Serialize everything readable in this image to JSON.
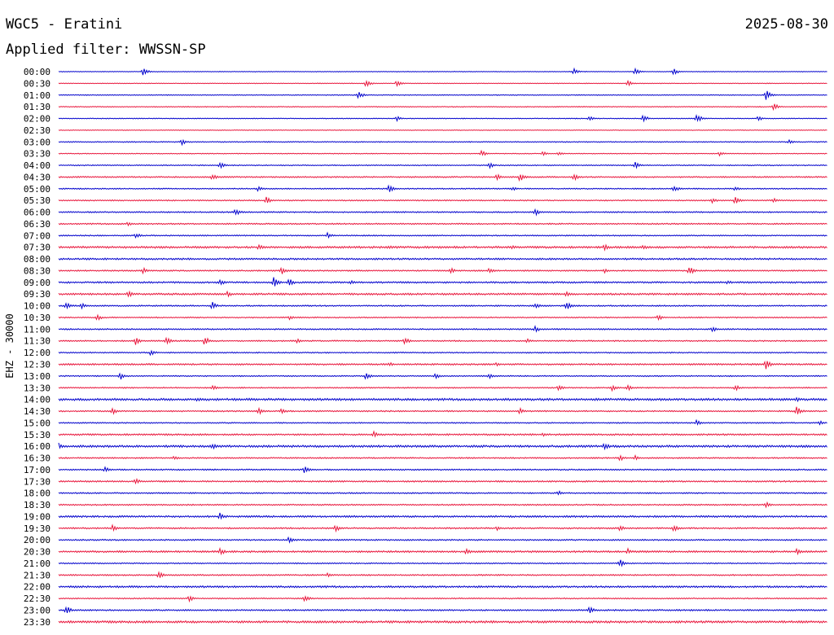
{
  "header": {
    "station": "WGC5 - Eratini",
    "date": "2025-08-30",
    "filter": "Applied filter: WWSSN-SP"
  },
  "chart_data": {
    "type": "line",
    "ylabel": "EHZ - 30000",
    "colors": [
      "#0000cc",
      "#e8153b"
    ],
    "rows": [
      "00:00",
      "00:30",
      "01:00",
      "01:30",
      "02:00",
      "02:30",
      "03:00",
      "03:30",
      "04:00",
      "04:30",
      "05:00",
      "05:30",
      "06:00",
      "06:30",
      "07:00",
      "07:30",
      "08:00",
      "08:30",
      "09:00",
      "09:30",
      "10:00",
      "10:30",
      "11:00",
      "11:30",
      "12:00",
      "12:30",
      "13:00",
      "13:30",
      "14:00",
      "14:30",
      "15:00",
      "15:30",
      "16:00",
      "16:30",
      "17:00",
      "17:30",
      "18:00",
      "18:30",
      "19:00",
      "19:30",
      "20:00",
      "20:30",
      "21:00",
      "21:30",
      "22:00",
      "22:30",
      "23:00",
      "23:30"
    ],
    "noise": [
      0.4,
      0.4,
      0.5,
      0.5,
      0.5,
      0.4,
      0.6,
      0.5,
      0.6,
      0.8,
      0.7,
      0.7,
      0.8,
      0.8,
      0.7,
      1.2,
      1.0,
      0.8,
      1.0,
      1.1,
      0.8,
      0.7,
      0.8,
      0.8,
      0.7,
      1.0,
      0.7,
      0.7,
      1.3,
      0.8,
      0.7,
      1.0,
      1.3,
      0.8,
      0.8,
      0.9,
      0.8,
      0.8,
      1.1,
      0.9,
      0.8,
      1.1,
      0.7,
      0.8,
      1.1,
      0.7,
      0.9,
      1.3
    ],
    "events": [
      [
        [
          0.11,
          5
        ],
        [
          0.67,
          4
        ],
        [
          0.75,
          5
        ],
        [
          0.8,
          4
        ]
      ],
      [
        [
          0.4,
          5
        ],
        [
          0.44,
          4
        ],
        [
          0.74,
          4
        ]
      ],
      [
        [
          0.39,
          5
        ],
        [
          0.92,
          7
        ]
      ],
      [
        [
          0.93,
          5
        ]
      ],
      [
        [
          0.44,
          3
        ],
        [
          0.69,
          3
        ],
        [
          0.76,
          5
        ],
        [
          0.83,
          6
        ],
        [
          0.91,
          3
        ]
      ],
      [],
      [
        [
          0.16,
          4
        ],
        [
          0.95,
          3
        ]
      ],
      [
        [
          0.55,
          4
        ],
        [
          0.63,
          3
        ],
        [
          0.65,
          3
        ],
        [
          0.86,
          3
        ]
      ],
      [
        [
          0.21,
          5
        ],
        [
          0.56,
          4
        ],
        [
          0.75,
          4
        ]
      ],
      [
        [
          0.2,
          4
        ],
        [
          0.57,
          4
        ],
        [
          0.6,
          6
        ],
        [
          0.67,
          5
        ]
      ],
      [
        [
          0.26,
          4
        ],
        [
          0.43,
          6
        ],
        [
          0.59,
          3
        ],
        [
          0.8,
          5
        ],
        [
          0.88,
          3
        ]
      ],
      [
        [
          0.27,
          5
        ],
        [
          0.85,
          4
        ],
        [
          0.88,
          5
        ],
        [
          0.93,
          3
        ]
      ],
      [
        [
          0.23,
          5
        ],
        [
          0.62,
          5
        ]
      ],
      [
        [
          0.09,
          3
        ]
      ],
      [
        [
          0.1,
          4
        ],
        [
          0.35,
          4
        ]
      ],
      [
        [
          0.26,
          4
        ],
        [
          0.43,
          3
        ],
        [
          0.59,
          3
        ],
        [
          0.71,
          4
        ],
        [
          0.76,
          4
        ]
      ],
      [],
      [
        [
          0.11,
          4
        ],
        [
          0.29,
          5
        ],
        [
          0.51,
          4
        ],
        [
          0.56,
          4
        ],
        [
          0.71,
          3
        ],
        [
          0.82,
          6
        ]
      ],
      [
        [
          0.21,
          4
        ],
        [
          0.28,
          7
        ],
        [
          0.3,
          5
        ],
        [
          0.38,
          3
        ],
        [
          0.87,
          3
        ]
      ],
      [
        [
          0.09,
          5
        ],
        [
          0.22,
          4
        ],
        [
          0.66,
          4
        ]
      ],
      [
        [
          0.01,
          5
        ],
        [
          0.03,
          4
        ],
        [
          0.2,
          5
        ],
        [
          0.62,
          4
        ],
        [
          0.66,
          6
        ]
      ],
      [
        [
          0.05,
          4
        ],
        [
          0.3,
          3
        ],
        [
          0.78,
          4
        ]
      ],
      [
        [
          0.62,
          4
        ],
        [
          0.85,
          4
        ]
      ],
      [
        [
          0.1,
          5
        ],
        [
          0.14,
          5
        ],
        [
          0.19,
          6
        ],
        [
          0.31,
          3
        ],
        [
          0.45,
          5
        ],
        [
          0.61,
          3
        ]
      ],
      [
        [
          0.12,
          4
        ]
      ],
      [
        [
          0.43,
          3
        ],
        [
          0.57,
          3
        ],
        [
          0.92,
          8
        ]
      ],
      [
        [
          0.08,
          5
        ],
        [
          0.4,
          5
        ],
        [
          0.49,
          4
        ],
        [
          0.56,
          4
        ]
      ],
      [
        [
          0.2,
          4
        ],
        [
          0.65,
          4
        ],
        [
          0.72,
          4
        ],
        [
          0.74,
          4
        ],
        [
          0.88,
          4
        ]
      ],
      [
        [
          0.18,
          3
        ],
        [
          0.96,
          3
        ]
      ],
      [
        [
          0.07,
          5
        ],
        [
          0.26,
          5
        ],
        [
          0.29,
          4
        ],
        [
          0.6,
          4
        ],
        [
          0.96,
          6
        ]
      ],
      [
        [
          0.83,
          4
        ],
        [
          0.99,
          3
        ]
      ],
      [
        [
          0.41,
          4
        ],
        [
          0.63,
          3
        ]
      ],
      [
        [
          0.0,
          5
        ],
        [
          0.2,
          4
        ],
        [
          0.71,
          5
        ]
      ],
      [
        [
          0.15,
          3
        ],
        [
          0.73,
          4
        ],
        [
          0.75,
          3
        ]
      ],
      [
        [
          0.06,
          4
        ],
        [
          0.32,
          5
        ]
      ],
      [
        [
          0.1,
          4
        ]
      ],
      [
        [
          0.65,
          3
        ]
      ],
      [
        [
          0.92,
          4
        ]
      ],
      [
        [
          0.21,
          5
        ]
      ],
      [
        [
          0.07,
          4
        ],
        [
          0.36,
          5
        ],
        [
          0.57,
          3
        ],
        [
          0.73,
          4
        ],
        [
          0.8,
          5
        ]
      ],
      [
        [
          0.3,
          5
        ]
      ],
      [
        [
          0.21,
          5
        ],
        [
          0.53,
          5
        ],
        [
          0.74,
          4
        ],
        [
          0.96,
          4
        ]
      ],
      [
        [
          0.73,
          5
        ]
      ],
      [
        [
          0.13,
          5
        ],
        [
          0.35,
          3
        ]
      ],
      [],
      [
        [
          0.17,
          4
        ],
        [
          0.32,
          5
        ]
      ],
      [
        [
          0.01,
          6
        ],
        [
          0.69,
          5
        ]
      ],
      []
    ]
  }
}
